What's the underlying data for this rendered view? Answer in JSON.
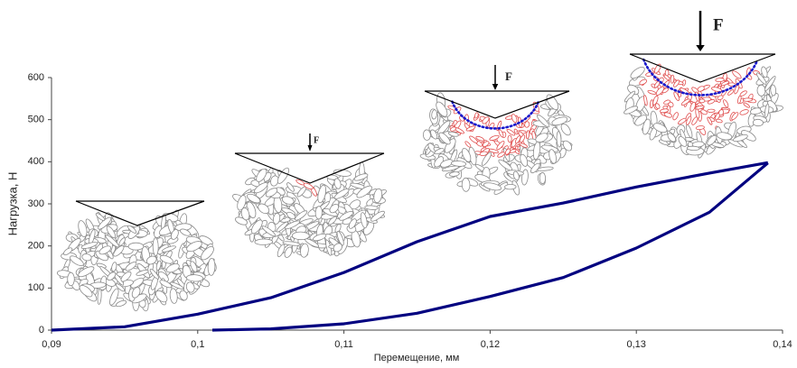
{
  "chart_data": {
    "type": "line",
    "x_label": "Перемещение, мм",
    "y_label": "Нагрузка, Н",
    "xlim": [
      0.09,
      0.14
    ],
    "xticks": [
      {
        "value": 0.09,
        "label": "0,09"
      },
      {
        "value": 0.1,
        "label": "0,1"
      },
      {
        "value": 0.11,
        "label": "0,11"
      },
      {
        "value": 0.12,
        "label": "0,12"
      },
      {
        "value": 0.13,
        "label": "0,13"
      },
      {
        "value": 0.14,
        "label": "0,14"
      }
    ],
    "ylim": [
      0,
      600
    ],
    "yticks": [
      0,
      100,
      200,
      300,
      400,
      500,
      600
    ],
    "grid": false,
    "series": [
      {
        "color": "#000080",
        "x": [
          0.09,
          0.095,
          0.1,
          0.105,
          0.11,
          0.115,
          0.12,
          0.125,
          0.13,
          0.135,
          0.139
        ],
        "values": [
          0,
          8,
          38,
          77,
          137,
          210,
          270,
          302,
          340,
          373,
          398
        ]
      },
      {
        "color": "#000080",
        "x": [
          0.139,
          0.135,
          0.13,
          0.125,
          0.12,
          0.115,
          0.11,
          0.105,
          0.101
        ],
        "values": [
          397,
          280,
          195,
          125,
          80,
          40,
          15,
          3,
          0
        ]
      }
    ],
    "annotations": [
      "F",
      "F",
      "F"
    ]
  }
}
